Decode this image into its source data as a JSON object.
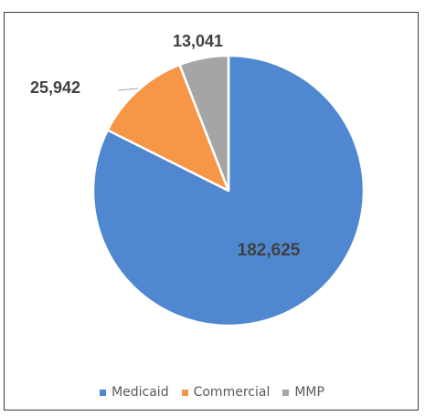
{
  "chart_data": {
    "type": "pie",
    "categories": [
      "Medicaid",
      "Commercial",
      "MMP"
    ],
    "values": [
      182625,
      25942,
      13041
    ],
    "data_labels": [
      "182,625",
      "25,942",
      "13,041"
    ],
    "colors": [
      "#4f88d0",
      "#f79646",
      "#a5a5a5"
    ],
    "start_angle": "12 o'clock",
    "direction": "clockwise",
    "legend_position": "bottom"
  }
}
